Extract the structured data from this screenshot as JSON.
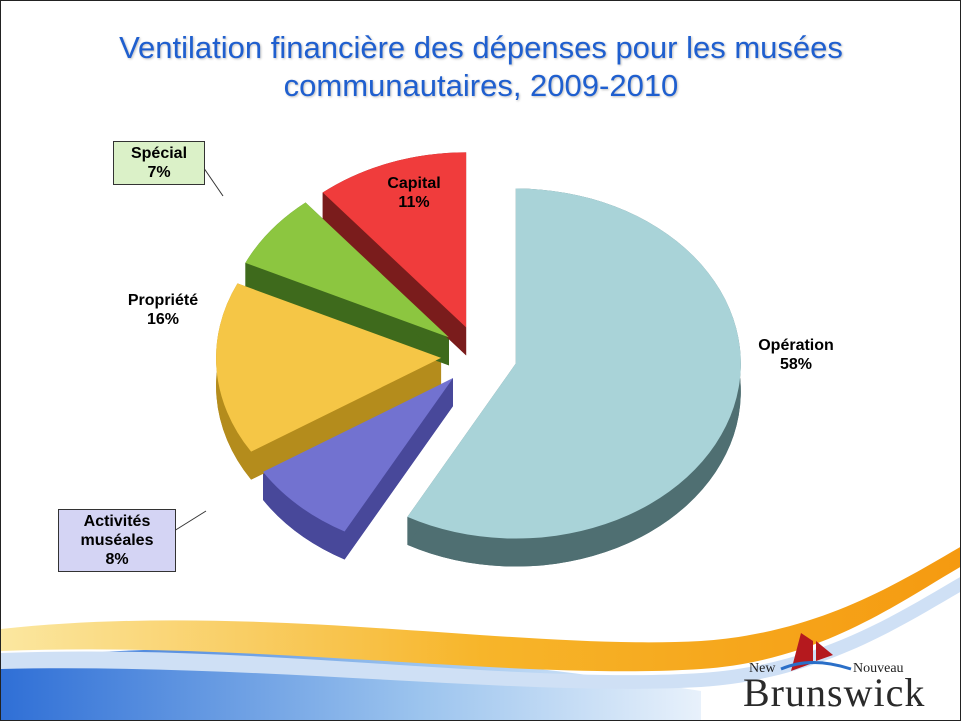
{
  "chart_data": {
    "type": "pie3d",
    "title": "Ventilation financière des dépenses pour les musées communautaires, 2009-2010",
    "categories": [
      "Opération",
      "Activités muséales",
      "Propriété",
      "Spécial",
      "Capital"
    ],
    "values": [
      58,
      8,
      16,
      7,
      11
    ],
    "value_labels": [
      "58%",
      "8%",
      "16%",
      "7%",
      "11%"
    ],
    "colors": [
      "#a9d3d8",
      "#7272d0",
      "#f5c646",
      "#8cc640",
      "#f03c3c"
    ],
    "side_colors": [
      "#4f6f72",
      "#48489a",
      "#b48c1c",
      "#3e6a1c",
      "#7a1c1c"
    ]
  },
  "logo": {
    "new": "New",
    "nouveau": "Nouveau",
    "name": "Brunswick"
  }
}
